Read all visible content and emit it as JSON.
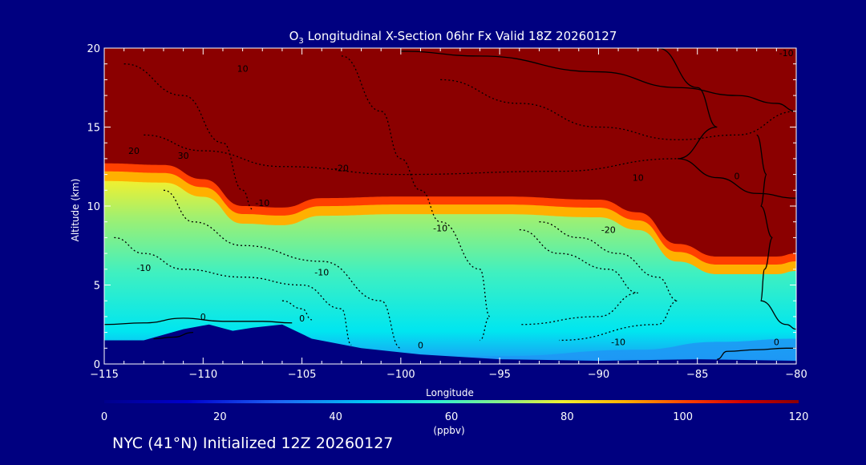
{
  "footer": {
    "text": "NYC (41°N) Initialized 12Z 20260127"
  },
  "chart_data": {
    "type": "contour-filled",
    "title_main": "O",
    "title_sub": "3",
    "title_rest": " Longitudinal X-Section 06hr  Fx Valid 18Z 20260127",
    "xlabel": "Longitude",
    "ylabel": "Altitude (km)",
    "xlim": [
      -115,
      -80
    ],
    "ylim": [
      0,
      20
    ],
    "xticks": [
      -115,
      -110,
      -105,
      -100,
      -95,
      -90,
      -85,
      -80
    ],
    "xtick_labels": [
      "−115",
      "−110",
      "−105",
      "−100",
      "−95",
      "−90",
      "−85",
      "−80"
    ],
    "yticks": [
      0,
      5,
      10,
      15,
      20
    ],
    "ytick_labels": [
      "0",
      "5",
      "10",
      "15",
      "20"
    ],
    "colorbar": {
      "min": 0,
      "max": 120,
      "ticks": [
        0,
        20,
        40,
        60,
        80,
        100,
        120
      ],
      "tick_labels": [
        "0",
        "20",
        "40",
        "60",
        "80",
        "100",
        "120"
      ],
      "unit_label": "(ppbv)",
      "colors": [
        "#0000cd",
        "#0a50f0",
        "#1e96f5",
        "#00e6f0",
        "#40f0c0",
        "#a0f070",
        "#f0f030",
        "#ffb000",
        "#ff4000",
        "#d00000",
        "#8b0000"
      ]
    },
    "tropopause_km": [
      {
        "lon": -115,
        "km": 12.5
      },
      {
        "lon": -112,
        "km": 12.4
      },
      {
        "lon": -110,
        "km": 11.5
      },
      {
        "lon": -108,
        "km": 9.8
      },
      {
        "lon": -106,
        "km": 9.7
      },
      {
        "lon": -104,
        "km": 10.3
      },
      {
        "lon": -100,
        "km": 10.4
      },
      {
        "lon": -95,
        "km": 10.4
      },
      {
        "lon": -90,
        "km": 10.2
      },
      {
        "lon": -88,
        "km": 9.4
      },
      {
        "lon": -86,
        "km": 7.4
      },
      {
        "lon": -84,
        "km": 6.6
      },
      {
        "lon": -81,
        "km": 6.6
      },
      {
        "lon": -80,
        "km": 6.8
      }
    ],
    "terrain_km": [
      {
        "lon": -115,
        "km": 1.5
      },
      {
        "lon": -113,
        "km": 1.5
      },
      {
        "lon": -111,
        "km": 2.2
      },
      {
        "lon": -109.7,
        "km": 2.5
      },
      {
        "lon": -108.5,
        "km": 2.1
      },
      {
        "lon": -107.5,
        "km": 2.3
      },
      {
        "lon": -106,
        "km": 2.5
      },
      {
        "lon": -104.5,
        "km": 1.6
      },
      {
        "lon": -102,
        "km": 1.0
      },
      {
        "lon": -99,
        "km": 0.6
      },
      {
        "lon": -95,
        "km": 0.3
      },
      {
        "lon": -90,
        "km": 0.2
      },
      {
        "lon": -85,
        "km": 0.3
      },
      {
        "lon": -80,
        "km": 0.2
      }
    ],
    "contour_labels": [
      {
        "lon": -113.5,
        "km": 13.3,
        "text": "20"
      },
      {
        "lon": -111.0,
        "km": 13.0,
        "text": "30"
      },
      {
        "lon": -108.0,
        "km": 18.5,
        "text": "10"
      },
      {
        "lon": -103.0,
        "km": 12.2,
        "text": "-20"
      },
      {
        "lon": -107.0,
        "km": 10.0,
        "text": "-10"
      },
      {
        "lon": -98.0,
        "km": 8.4,
        "text": "-10"
      },
      {
        "lon": -104.0,
        "km": 5.6,
        "text": "-10"
      },
      {
        "lon": -113.0,
        "km": 5.9,
        "text": "-10"
      },
      {
        "lon": -89.5,
        "km": 8.3,
        "text": "-20"
      },
      {
        "lon": -88.0,
        "km": 11.6,
        "text": "10"
      },
      {
        "lon": -83.0,
        "km": 11.7,
        "text": "0"
      },
      {
        "lon": -80.5,
        "km": 19.5,
        "text": "-10"
      },
      {
        "lon": -110.0,
        "km": 2.8,
        "text": "0"
      },
      {
        "lon": -105.0,
        "km": 2.7,
        "text": "0"
      },
      {
        "lon": -99.0,
        "km": 1.0,
        "text": "0"
      },
      {
        "lon": -89.0,
        "km": 1.2,
        "text": "-10"
      },
      {
        "lon": -81.0,
        "km": 1.2,
        "text": "0"
      }
    ]
  }
}
